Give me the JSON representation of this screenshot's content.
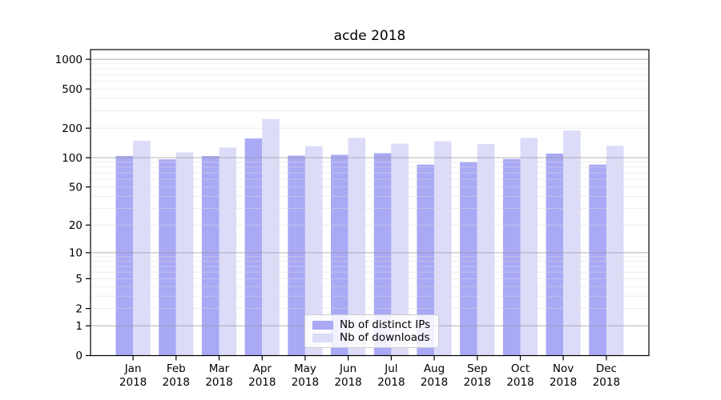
{
  "chart_data": {
    "type": "bar",
    "title": "acde 2018",
    "year": "2018",
    "months": [
      "Jan",
      "Feb",
      "Mar",
      "Apr",
      "May",
      "Jun",
      "Jul",
      "Aug",
      "Sep",
      "Oct",
      "Nov",
      "Dec"
    ],
    "series": [
      {
        "name": "Nb of distinct IPs",
        "color": "#a9a9f6",
        "values": [
          104,
          96,
          104,
          157,
          105,
          107,
          111,
          85,
          90,
          97,
          110,
          85
        ]
      },
      {
        "name": "Nb of downloads",
        "color": "#dcdcf9",
        "values": [
          149,
          113,
          127,
          248,
          131,
          159,
          139,
          147,
          138,
          159,
          189,
          132
        ]
      }
    ],
    "yscale": "log1p",
    "yticks": [
      0,
      1,
      2,
      5,
      10,
      20,
      50,
      100,
      200,
      500,
      1000
    ],
    "ylim": [
      0,
      1253
    ],
    "grid": {
      "major_color": "#999999",
      "minor_color": "#dcdcdc"
    },
    "axis_color": "#000000",
    "legend_position": "lower center"
  }
}
